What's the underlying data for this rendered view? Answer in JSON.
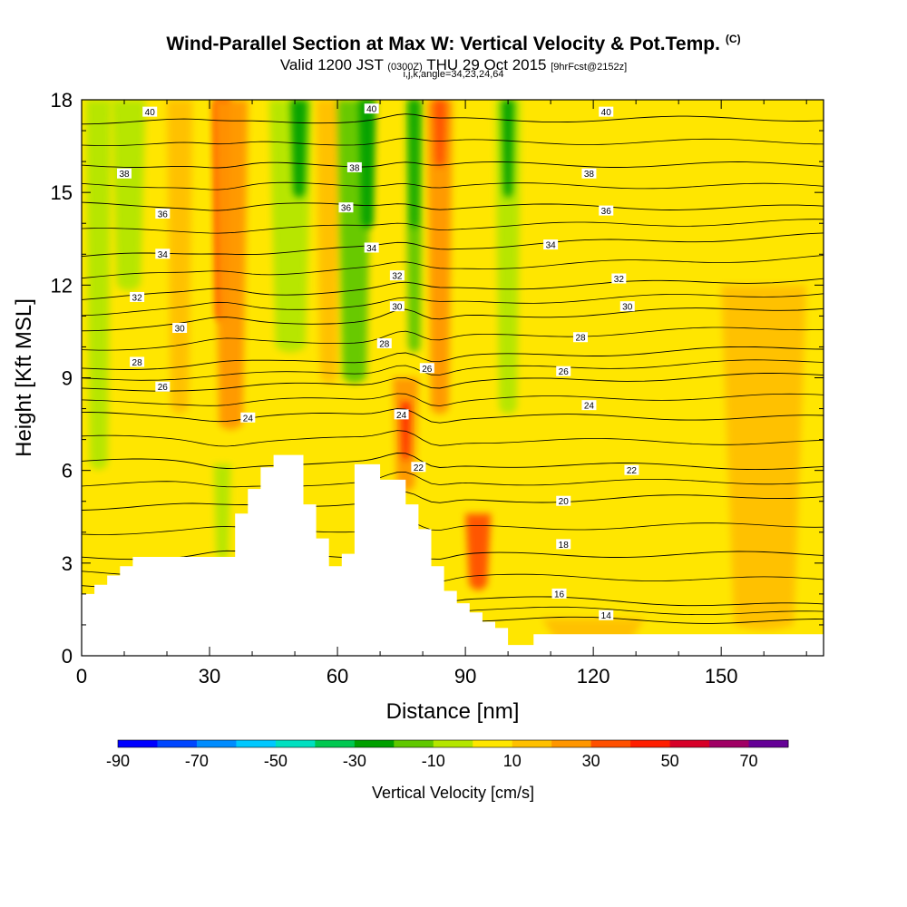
{
  "header": {
    "title": "Wind-Parallel Section at Max W: Vertical Velocity & Pot.Temp.",
    "copyright": "(C)",
    "valid_main": "Valid 1200 JST",
    "valid_utc": "(0300Z)",
    "valid_date": "THU 29 Oct 2015",
    "forecast": "[9hrFcst@2152z]",
    "indices": "i,j,k,angle=34,23,24,64"
  },
  "colors": {
    "field_base": "#ffe600",
    "light_orange": "#ffc000",
    "orange": "#ff9900",
    "red_orange": "#ff5a00",
    "red": "#ff2000",
    "lime": "#c8e600",
    "yellow_green": "#9dd800",
    "green": "#4cbf00",
    "dark_green": "#21a300",
    "terrain": "#ffffff"
  },
  "chart_data": {
    "type": "heatmap",
    "xlabel": "Distance [nm]",
    "ylabel": "Height [Kft MSL]",
    "xlim": [
      0,
      174
    ],
    "ylim": [
      0,
      18
    ],
    "x_ticks": [
      "0",
      "30",
      "60",
      "90",
      "120",
      "150"
    ],
    "y_ticks": [
      "0",
      "3",
      "6",
      "9",
      "12",
      "15",
      "18"
    ],
    "grid": false,
    "colorbar": {
      "label": "Vertical Velocity [cm/s]",
      "tick_labels": [
        "-90",
        "-70",
        "-50",
        "-30",
        "-10",
        "10",
        "30",
        "50",
        "70"
      ],
      "bins": [
        {
          "from": -90,
          "to": -80,
          "color": "#0000ff"
        },
        {
          "from": -80,
          "to": -70,
          "color": "#0046ff"
        },
        {
          "from": -70,
          "to": -60,
          "color": "#008cff"
        },
        {
          "from": -60,
          "to": -50,
          "color": "#00c8ff"
        },
        {
          "from": -50,
          "to": -40,
          "color": "#00e0c0"
        },
        {
          "from": -40,
          "to": -30,
          "color": "#00c850"
        },
        {
          "from": -30,
          "to": -20,
          "color": "#00a000"
        },
        {
          "from": -20,
          "to": -10,
          "color": "#60c800"
        },
        {
          "from": -10,
          "to": 0,
          "color": "#b4e600"
        },
        {
          "from": 0,
          "to": 10,
          "color": "#ffe600"
        },
        {
          "from": 10,
          "to": 20,
          "color": "#ffc000"
        },
        {
          "from": 20,
          "to": 30,
          "color": "#ff9600"
        },
        {
          "from": 30,
          "to": 40,
          "color": "#ff5000"
        },
        {
          "from": 40,
          "to": 50,
          "color": "#ff1e00"
        },
        {
          "from": 50,
          "to": 60,
          "color": "#d70028"
        },
        {
          "from": 60,
          "to": 70,
          "color": "#a00064"
        },
        {
          "from": 70,
          "to": 80,
          "color": "#640096"
        }
      ]
    },
    "terrain_profile": {
      "x": [
        0,
        3,
        3,
        6,
        6,
        9,
        9,
        12,
        12,
        36,
        36,
        39,
        39,
        42,
        42,
        45,
        45,
        52,
        52,
        55,
        55,
        58,
        58,
        61,
        61,
        64,
        64,
        70,
        70,
        76,
        76,
        79,
        79,
        82,
        82,
        85,
        85,
        88,
        88,
        91,
        91,
        94,
        94,
        97,
        97,
        100,
        100,
        106,
        106,
        145,
        145,
        174
      ],
      "y": [
        2.0,
        2.0,
        2.3,
        2.3,
        2.6,
        2.6,
        2.9,
        2.9,
        3.2,
        3.2,
        4.6,
        4.6,
        5.4,
        5.4,
        6.1,
        6.1,
        6.5,
        6.5,
        4.9,
        4.9,
        3.8,
        3.8,
        2.9,
        2.9,
        3.3,
        3.3,
        6.2,
        6.2,
        5.7,
        5.7,
        4.9,
        4.9,
        4.1,
        4.1,
        2.9,
        2.9,
        2.1,
        2.1,
        1.7,
        1.7,
        1.4,
        1.4,
        1.1,
        1.1,
        0.9,
        0.9,
        0.35,
        0.35,
        0.7,
        0.7,
        0.7,
        0.7
      ]
    },
    "velocity_features": [
      {
        "x_center": 4,
        "y_base": 6.2,
        "y_top": 18,
        "halfwidth": 3,
        "value": -10
      },
      {
        "x_center": 11,
        "y_base": 12,
        "y_top": 18,
        "halfwidth": 4,
        "value": -5
      },
      {
        "x_center": 23,
        "y_base": 8,
        "y_top": 18,
        "halfwidth": 3,
        "value": 15
      },
      {
        "x_center": 33,
        "y_base": 11,
        "y_top": 18,
        "halfwidth": 2,
        "value": 45
      },
      {
        "x_center": 35,
        "y_base": 7.5,
        "y_top": 18,
        "halfwidth": 4,
        "value": 25
      },
      {
        "x_center": 33,
        "y_base": 3.3,
        "y_top": 6.2,
        "halfwidth": 2,
        "value": -10
      },
      {
        "x_center": 49,
        "y_base": 10,
        "y_top": 18,
        "halfwidth": 5,
        "value": -10
      },
      {
        "x_center": 51,
        "y_base": 15,
        "y_top": 18,
        "halfwidth": 2,
        "value": -30
      },
      {
        "x_center": 58,
        "y_base": 9,
        "y_top": 18,
        "halfwidth": 3,
        "value": 15
      },
      {
        "x_center": 64,
        "y_base": 9,
        "y_top": 18,
        "halfwidth": 4,
        "value": -15
      },
      {
        "x_center": 67,
        "y_base": 14,
        "y_top": 18,
        "halfwidth": 2,
        "value": -30
      },
      {
        "x_center": 76,
        "y_base": 5.5,
        "y_top": 9,
        "halfwidth": 3,
        "value": 25
      },
      {
        "x_center": 76,
        "y_base": 6.5,
        "y_top": 8.2,
        "halfwidth": 1,
        "value": 45
      },
      {
        "x_center": 78,
        "y_base": 10,
        "y_top": 18,
        "halfwidth": 2,
        "value": -20
      },
      {
        "x_center": 78,
        "y_base": 14,
        "y_top": 18,
        "halfwidth": 1,
        "value": -30
      },
      {
        "x_center": 84,
        "y_base": 8,
        "y_top": 18,
        "halfwidth": 3,
        "value": 20
      },
      {
        "x_center": 84,
        "y_base": 16,
        "y_top": 18,
        "halfwidth": 1.5,
        "value": 35
      },
      {
        "x_center": 93,
        "y_base": 2.3,
        "y_top": 4.6,
        "halfwidth": 3,
        "value": 30
      },
      {
        "x_center": 100,
        "y_base": 8,
        "y_top": 18,
        "halfwidth": 3,
        "value": -10
      },
      {
        "x_center": 100,
        "y_base": 15,
        "y_top": 18,
        "halfwidth": 1.5,
        "value": -25
      },
      {
        "x_center": 120,
        "y_base": 0.4,
        "y_top": 1.2,
        "halfwidth": 12,
        "value": 12
      },
      {
        "x_center": 160,
        "y_base": 1,
        "y_top": 12,
        "halfwidth": 10,
        "value": 10
      }
    ],
    "isentropes": [
      {
        "theta": 14,
        "y_left": 1.3,
        "y_right": 1.1
      },
      {
        "theta": 16,
        "y_left": 2.2,
        "y_right": 1.6
      },
      {
        "theta": 18,
        "y_left": 3.2,
        "y_right": 3.3
      },
      {
        "theta": 20,
        "y_left": 4.8,
        "y_right": 5.2
      },
      {
        "theta": 22,
        "y_left": 6.3,
        "y_right": 6.1
      },
      {
        "theta": 24,
        "y_left": 7.8,
        "y_right": 7.7
      },
      {
        "theta": 26,
        "y_left": 8.6,
        "y_right": 9.1
      },
      {
        "theta": 28,
        "y_left": 9.3,
        "y_right": 10.0
      },
      {
        "theta": 30,
        "y_left": 10.6,
        "y_right": 11.3
      },
      {
        "theta": 32,
        "y_left": 11.6,
        "y_right": 12.2
      },
      {
        "theta": 34,
        "y_left": 12.9,
        "y_right": 13.6
      },
      {
        "theta": 36,
        "y_left": 14.6,
        "y_right": 14.5
      },
      {
        "theta": 38,
        "y_left": 15.9,
        "y_right": 15.9
      },
      {
        "theta": 40,
        "y_left": 17.3,
        "y_right": 17.4
      }
    ],
    "isentrope_labels": [
      {
        "text": "40",
        "x": 16,
        "y": 17.6
      },
      {
        "text": "40",
        "x": 68,
        "y": 17.7
      },
      {
        "text": "40",
        "x": 123,
        "y": 17.6
      },
      {
        "text": "38",
        "x": 10,
        "y": 15.6
      },
      {
        "text": "38",
        "x": 64,
        "y": 15.8
      },
      {
        "text": "38",
        "x": 119,
        "y": 15.6
      },
      {
        "text": "36",
        "x": 19,
        "y": 14.3
      },
      {
        "text": "36",
        "x": 62,
        "y": 14.5
      },
      {
        "text": "36",
        "x": 123,
        "y": 14.4
      },
      {
        "text": "34",
        "x": 19,
        "y": 13.0
      },
      {
        "text": "34",
        "x": 68,
        "y": 13.2
      },
      {
        "text": "34",
        "x": 110,
        "y": 13.3
      },
      {
        "text": "32",
        "x": 13,
        "y": 11.6
      },
      {
        "text": "32",
        "x": 74,
        "y": 12.3
      },
      {
        "text": "32",
        "x": 126,
        "y": 12.2
      },
      {
        "text": "30",
        "x": 23,
        "y": 10.6
      },
      {
        "text": "30",
        "x": 74,
        "y": 11.3
      },
      {
        "text": "30",
        "x": 128,
        "y": 11.3
      },
      {
        "text": "28",
        "x": 13,
        "y": 9.5
      },
      {
        "text": "28",
        "x": 71,
        "y": 10.1
      },
      {
        "text": "28",
        "x": 117,
        "y": 10.3
      },
      {
        "text": "26",
        "x": 19,
        "y": 8.7
      },
      {
        "text": "26",
        "x": 81,
        "y": 9.3
      },
      {
        "text": "26",
        "x": 113,
        "y": 9.2
      },
      {
        "text": "24",
        "x": 39,
        "y": 7.7
      },
      {
        "text": "24",
        "x": 75,
        "y": 7.8
      },
      {
        "text": "24",
        "x": 119,
        "y": 8.1
      },
      {
        "text": "22",
        "x": 79,
        "y": 6.1
      },
      {
        "text": "22",
        "x": 129,
        "y": 6.0
      },
      {
        "text": "20",
        "x": 113,
        "y": 5.0
      },
      {
        "text": "18",
        "x": 113,
        "y": 3.6
      },
      {
        "text": "16",
        "x": 112,
        "y": 2.0
      },
      {
        "text": "14",
        "x": 123,
        "y": 1.3
      }
    ]
  }
}
